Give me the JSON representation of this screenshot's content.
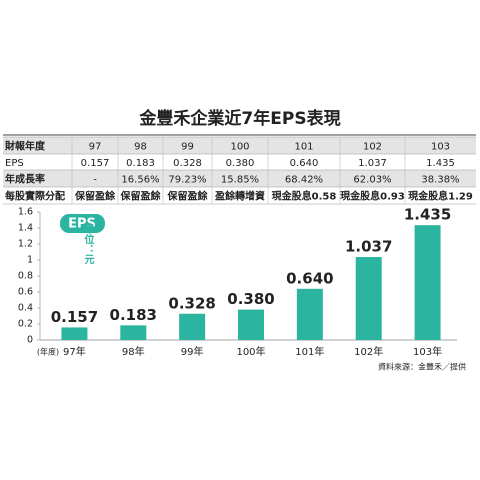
{
  "title": "金豐禾企業近7年EPS表現",
  "table": {
    "rows": [
      [
        "財報年度",
        "97",
        "98",
        "99",
        "100",
        "101",
        "102",
        "103"
      ],
      [
        "EPS",
        "0.157",
        "0.183",
        "0.328",
        "0.380",
        "0.640",
        "1.037",
        "1.435"
      ],
      [
        "年成長率",
        "-",
        "16.56%",
        "79.23%",
        "15.85%",
        "68.42%",
        "62.03%",
        "38.38%"
      ],
      [
        "每股實際分配",
        "保留盈餘",
        "保留盈餘",
        "保留盈餘",
        "盈餘轉增資",
        "現金股息0.58",
        "現金股息0.93",
        "現金股息1.29"
      ]
    ]
  },
  "chart_data": {
    "type": "bar",
    "badge": "EPS",
    "y_label": "單位：元",
    "x_label": "(年度)",
    "categories": [
      "97年",
      "98年",
      "99年",
      "100年",
      "101年",
      "102年",
      "103年"
    ],
    "values": [
      0.157,
      0.183,
      0.328,
      0.38,
      0.64,
      1.037,
      1.435
    ],
    "value_labels": [
      "0.157",
      "0.183",
      "0.328",
      "0.380",
      "0.640",
      "1.037",
      "1.435"
    ],
    "color": "#2bb5a0",
    "ylim": [
      0,
      1.6
    ],
    "yticks": [
      0,
      0.2,
      0.4,
      0.6,
      0.8,
      1,
      1.2,
      1.4,
      1.6
    ]
  },
  "source": "資料來源：金豐禾／提供"
}
